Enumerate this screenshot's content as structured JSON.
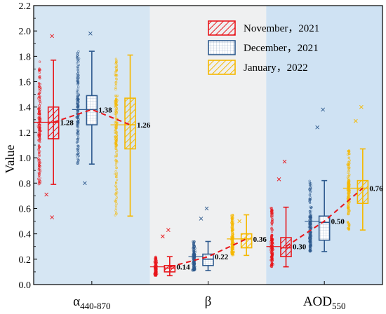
{
  "chart_data": {
    "type": "boxplot",
    "ylabel": "Value",
    "ylim": [
      0,
      2.2
    ],
    "yticks": [
      0.0,
      0.2,
      0.4,
      0.6,
      0.8,
      1.0,
      1.2,
      1.4,
      1.6,
      1.8,
      2.0,
      2.2
    ],
    "ytick_labels": [
      "0.0",
      "0.2",
      "0.4",
      "0.6",
      "0.8",
      "1.0",
      "1.2",
      "1.4",
      "1.6",
      "1.8",
      "2.0",
      "2.2"
    ],
    "groups": [
      {
        "label": "α",
        "sub": "440-870",
        "bg": "#d6e6f3"
      },
      {
        "label": "β",
        "sub": "",
        "bg": "#eff0f1"
      },
      {
        "label": "AOD",
        "sub": "550",
        "bg": "#cfe2f3"
      }
    ],
    "series": [
      {
        "name": "November，2021",
        "color": "#e8161b",
        "hatch": "diag"
      },
      {
        "name": "December，2021",
        "color": "#2e5a8e",
        "hatch": "grid"
      },
      {
        "name": "January，2022",
        "color": "#f5b800",
        "hatch": "diag"
      }
    ],
    "boxes": [
      [
        {
          "q1": 1.15,
          "median": 1.28,
          "q3": 1.4,
          "whisker_low": 0.79,
          "whisker_high": 1.77,
          "mean": 1.28,
          "outliers": [
            0.71,
            0.53,
            1.96
          ]
        },
        {
          "q1": 1.26,
          "median": 1.38,
          "q3": 1.49,
          "whisker_low": 0.95,
          "whisker_high": 1.84,
          "mean": 1.38,
          "outliers": [
            0.8,
            1.98
          ]
        },
        {
          "q1": 1.07,
          "median": 1.26,
          "q3": 1.47,
          "whisker_low": 0.54,
          "whisker_high": 1.81,
          "mean": 1.26,
          "outliers": []
        }
      ],
      [
        {
          "q1": 0.1,
          "median": 0.13,
          "q3": 0.15,
          "whisker_low": 0.07,
          "whisker_high": 0.22,
          "mean": 0.14,
          "outliers": [
            0.38,
            0.43
          ]
        },
        {
          "q1": 0.15,
          "median": 0.2,
          "q3": 0.24,
          "whisker_low": 0.11,
          "whisker_high": 0.34,
          "mean": 0.22,
          "outliers": [
            0.52,
            0.6
          ]
        },
        {
          "q1": 0.29,
          "median": 0.36,
          "q3": 0.4,
          "whisker_low": 0.23,
          "whisker_high": 0.55,
          "mean": 0.36,
          "outliers": [
            0.5
          ]
        }
      ],
      [
        {
          "q1": 0.22,
          "median": 0.29,
          "q3": 0.37,
          "whisker_low": 0.14,
          "whisker_high": 0.61,
          "mean": 0.3,
          "outliers": [
            0.83,
            0.97
          ]
        },
        {
          "q1": 0.35,
          "median": 0.49,
          "q3": 0.54,
          "whisker_low": 0.26,
          "whisker_high": 0.82,
          "mean": 0.5,
          "outliers": [
            1.24,
            1.38
          ]
        },
        {
          "q1": 0.64,
          "median": 0.76,
          "q3": 0.82,
          "whisker_low": 0.43,
          "whisker_high": 1.07,
          "mean": 0.76,
          "outliers": [
            1.29,
            1.4
          ]
        }
      ]
    ],
    "mean_labels": [
      [
        "1.28",
        "1.38",
        "1.26"
      ],
      [
        "0.14",
        "0.22",
        "0.36"
      ],
      [
        "0.30",
        "0.50",
        "0.76"
      ]
    ],
    "trend_line_color": "#e8161b",
    "legend_position": "top-right"
  }
}
